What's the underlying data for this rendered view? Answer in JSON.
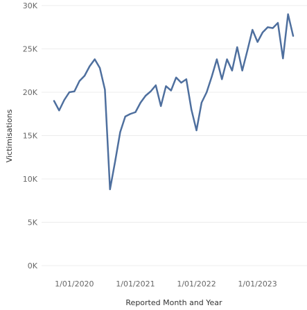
{
  "chart_data": {
    "type": "line",
    "title": "",
    "xlabel": "Reported Month and Year",
    "ylabel": "Victimisations",
    "ylim": [
      0,
      30000
    ],
    "y_ticks": [
      {
        "value": 0,
        "label": "0K"
      },
      {
        "value": 5000,
        "label": "5K"
      },
      {
        "value": 10000,
        "label": "10K"
      },
      {
        "value": 15000,
        "label": "15K"
      },
      {
        "value": 20000,
        "label": "20K"
      },
      {
        "value": 25000,
        "label": "25K"
      },
      {
        "value": 30000,
        "label": "30K"
      }
    ],
    "x_ticks": [
      {
        "index": 4,
        "label": "1/01/2020"
      },
      {
        "index": 16,
        "label": "1/01/2021"
      },
      {
        "index": 28,
        "label": "1/01/2022"
      },
      {
        "index": 40,
        "label": "1/01/2023"
      }
    ],
    "grid": {
      "horizontal": true,
      "vertical": false
    },
    "legend": "none",
    "line_color": "#4e6f9e",
    "series": [
      {
        "values": [
          19000,
          17900,
          19100,
          20000,
          20100,
          21300,
          21900,
          23000,
          23800,
          22800,
          20300,
          8800,
          12000,
          15400,
          17200,
          17500,
          17700,
          18800,
          19600,
          20100,
          20800,
          18400,
          20700,
          20200,
          21700,
          21100,
          21500,
          18000,
          15600,
          18800,
          20000,
          21800,
          23800,
          21500,
          23800,
          22500,
          25200,
          22500,
          24800,
          27200,
          25800,
          26900,
          27500,
          27400,
          28000,
          23900,
          29000,
          26500
        ]
      }
    ]
  }
}
